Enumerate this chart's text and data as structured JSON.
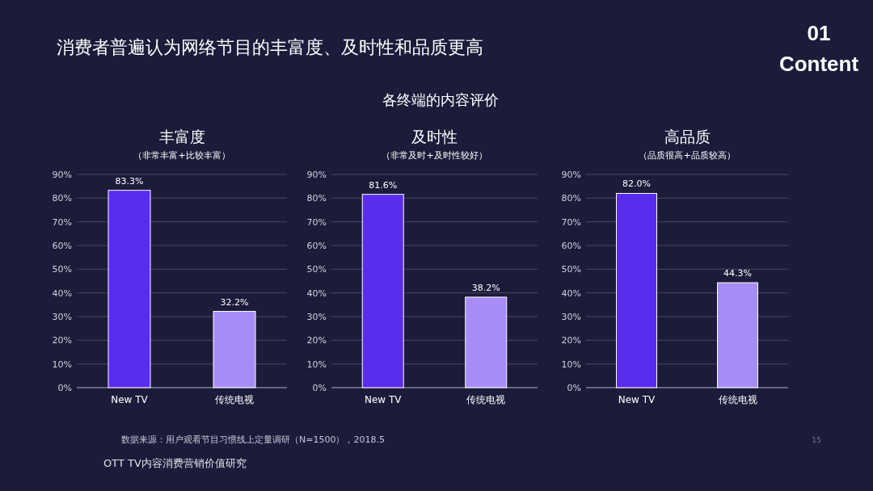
{
  "chart_data": [
    {
      "type": "bar",
      "title": "丰富度",
      "subtitle": "（非常丰富+比较丰富）",
      "categories": [
        "New TV",
        "传统电视"
      ],
      "values": [
        83.3,
        32.2
      ],
      "colors": [
        "#5a2cf0",
        "#a78cf6"
      ],
      "value_labels": [
        "83.3%",
        "32.2%"
      ],
      "ylim": [
        0,
        90
      ],
      "yticks": [
        {
          "value": 0,
          "label": "0%"
        },
        {
          "value": 10,
          "label": "10%"
        },
        {
          "value": 20,
          "label": "20%"
        },
        {
          "value": 30,
          "label": "30%"
        },
        {
          "value": 40,
          "label": "40%"
        },
        {
          "value": 50,
          "label": "50%"
        },
        {
          "value": 60,
          "label": "60%"
        },
        {
          "value": 70,
          "label": "70%"
        },
        {
          "value": 80,
          "label": "80%"
        },
        {
          "value": 90,
          "label": "90%"
        }
      ],
      "grid": "y",
      "annotations": [
        "消费者普遍认为网络节目的丰富度、及时性和品质更高",
        "各终端的内容评价",
        "01",
        "Content",
        "数据来源：用户观看节目习惯线上定量调研（N=1500），2018.5",
        "OTT TV内容消费营销价值研究",
        "15"
      ]
    },
    {
      "type": "bar",
      "title": "及时性",
      "subtitle": "（非常及时+及时性较好）",
      "categories": [
        "New TV",
        "传统电视"
      ],
      "values": [
        81.6,
        38.2
      ],
      "colors": [
        "#5a2cf0",
        "#a78cf6"
      ],
      "value_labels": [
        "81.6%",
        "38.2%"
      ],
      "ylim": [
        0,
        90
      ],
      "yticks": [
        {
          "value": 0,
          "label": "0%"
        },
        {
          "value": 10,
          "label": "10%"
        },
        {
          "value": 20,
          "label": "20%"
        },
        {
          "value": 30,
          "label": "30%"
        },
        {
          "value": 40,
          "label": "40%"
        },
        {
          "value": 50,
          "label": "50%"
        },
        {
          "value": 60,
          "label": "60%"
        },
        {
          "value": 70,
          "label": "70%"
        },
        {
          "value": 80,
          "label": "80%"
        },
        {
          "value": 90,
          "label": "90%"
        }
      ],
      "grid": "y"
    },
    {
      "type": "bar",
      "title": "高品质",
      "subtitle": "（品质很高+品质较高）",
      "categories": [
        "New TV",
        "传统电视"
      ],
      "values": [
        82.0,
        44.3
      ],
      "colors": [
        "#5a2cf0",
        "#a78cf6"
      ],
      "value_labels": [
        "82.0%",
        "44.3%"
      ],
      "ylim": [
        0,
        90
      ],
      "yticks": [
        {
          "value": 0,
          "label": "0%"
        },
        {
          "value": 10,
          "label": "10%"
        },
        {
          "value": 20,
          "label": "20%"
        },
        {
          "value": 30,
          "label": "30%"
        },
        {
          "value": 40,
          "label": "40%"
        },
        {
          "value": 50,
          "label": "50%"
        },
        {
          "value": 60,
          "label": "60%"
        },
        {
          "value": 70,
          "label": "70%"
        },
        {
          "value": 80,
          "label": "80%"
        },
        {
          "value": 90,
          "label": "90%"
        }
      ],
      "grid": "y"
    }
  ]
}
